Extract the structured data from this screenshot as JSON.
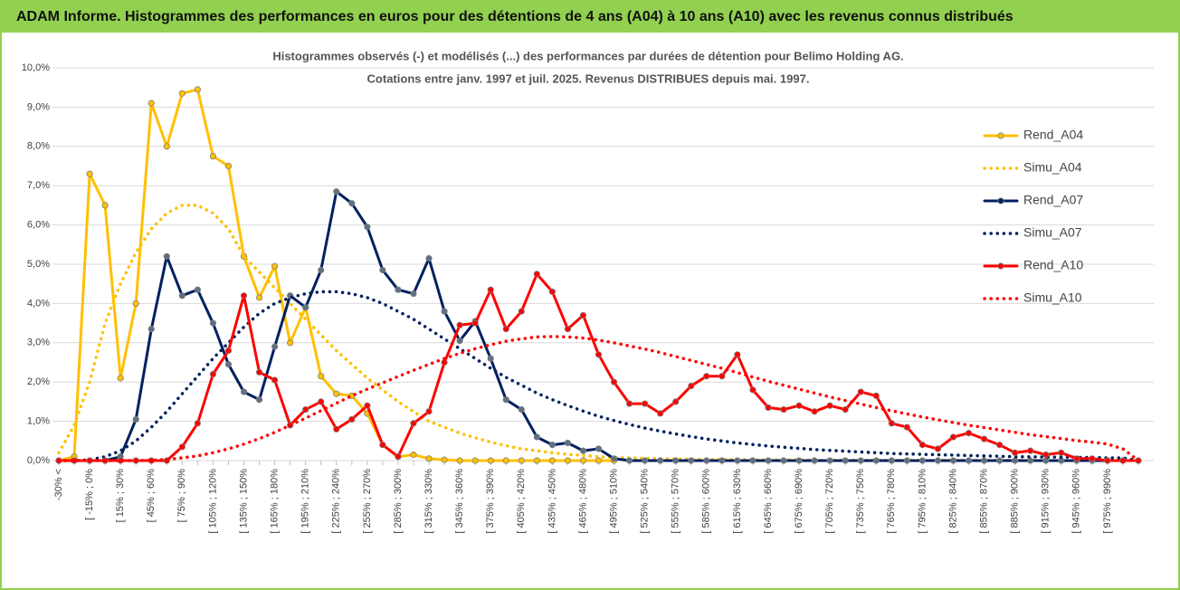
{
  "chart_data": {
    "type": "line",
    "title": "ADAM Informe. Histogrammes des performances en euros pour des détentions de 4 ans (A04) à 10 ans (A10) avec les revenus connus distribués",
    "subtitle": [
      "Histogrammes observés (-) et modélisés (...) des performances par durées de détention pour Belimo Holding AG.",
      "Cotations entre janv. 1997 et juil. 2025. Revenus DISTRIBUES depuis mai. 1997."
    ],
    "categories": [
      "-30% <",
      null,
      "[ -15% ; 0%",
      null,
      "[ 15% ; 30%",
      null,
      "[ 45% ; 60%",
      null,
      "[ 75% ; 90%",
      null,
      "[ 105% ; 120%",
      null,
      "[ 135% ; 150%",
      null,
      "[ 165% ; 180%",
      null,
      "[ 195% ; 210%",
      null,
      "[ 225% ; 240%",
      null,
      "[ 255% ; 270%",
      null,
      "[ 285% ; 300%",
      null,
      "[ 315% ; 330%",
      null,
      "[ 345% ; 360%",
      null,
      "[ 375% ; 390%",
      null,
      "[ 405% ; 420%",
      null,
      "[ 435% ; 450%",
      null,
      "[ 465% ; 480%",
      null,
      "[ 495% ; 510%",
      null,
      "[ 525% ; 540%",
      null,
      "[ 555% ; 570%",
      null,
      "[ 585% ; 600%",
      null,
      "[ 615% ; 630%",
      null,
      "[ 645% ; 660%",
      null,
      "[ 675% ; 690%",
      null,
      "[ 705% ; 720%",
      null,
      "[ 735% ; 750%",
      null,
      "[ 765% ; 780%",
      null,
      "[ 795% ; 810%",
      null,
      "[ 825% ; 840%",
      null,
      "[ 855% ; 870%",
      null,
      "[ 885% ; 900%",
      null,
      "[ 915% ; 930%",
      null,
      "[ 945% ; 960%",
      null,
      "[ 975% ; 990%",
      null,
      null
    ],
    "series": [
      {
        "name": "Rend_A04",
        "color": "#ffc000",
        "line_style": "solid",
        "markers": true,
        "values": [
          0,
          0.1,
          7.3,
          6.5,
          2.1,
          4.0,
          9.1,
          8.0,
          9.35,
          9.45,
          7.75,
          7.5,
          5.2,
          4.15,
          4.95,
          3.0,
          3.9,
          2.15,
          1.7,
          1.65,
          1.2,
          0.4,
          0.1,
          0.15,
          0.05,
          0.02,
          0,
          0,
          0,
          0,
          0,
          0,
          0,
          0,
          0,
          0,
          0,
          null,
          null,
          null,
          null,
          null,
          null,
          null,
          null,
          null,
          null,
          null,
          null,
          null,
          null,
          null,
          null,
          null,
          null,
          null,
          null,
          null,
          null,
          null,
          null,
          null,
          null,
          null,
          null,
          null,
          null,
          null,
          null,
          null,
          null
        ]
      },
      {
        "name": "Simu_A04",
        "color": "#ffc000",
        "line_style": "dotted",
        "markers": false,
        "values": [
          0.2,
          0.9,
          2.0,
          3.5,
          4.5,
          5.3,
          5.9,
          6.3,
          6.5,
          6.5,
          6.3,
          5.9,
          5.2,
          4.8,
          4.4,
          4.0,
          3.6,
          3.2,
          2.8,
          2.45,
          2.1,
          1.8,
          1.5,
          1.25,
          1.0,
          0.85,
          0.7,
          0.58,
          0.47,
          0.38,
          0.3,
          0.25,
          0.2,
          0.16,
          0.13,
          0.1,
          0.08,
          0.07,
          0.06,
          0.05,
          0.04,
          0.04,
          0.03,
          0.03,
          0.03,
          0.02,
          0.02,
          0.02,
          0.02,
          0.01,
          0.01,
          0.01,
          0.01,
          0.01,
          0.01,
          0.01,
          0.01,
          0.01,
          0.01,
          0.01,
          0.01,
          0.01,
          0.01,
          0.01,
          0.01,
          0,
          0,
          0,
          0,
          0,
          0
        ]
      },
      {
        "name": "Rend_A07",
        "color": "#002060",
        "line_style": "solid",
        "markers": true,
        "values": [
          0,
          0,
          0,
          0,
          0.1,
          1.05,
          3.35,
          5.2,
          4.2,
          4.35,
          3.5,
          2.45,
          1.75,
          1.55,
          2.9,
          4.2,
          3.9,
          4.85,
          6.85,
          6.55,
          5.95,
          4.85,
          4.35,
          4.25,
          5.15,
          3.8,
          3.05,
          3.55,
          2.6,
          1.55,
          1.3,
          0.6,
          0.4,
          0.45,
          0.25,
          0.3,
          0.05,
          0,
          0,
          0,
          0,
          0,
          0,
          0,
          0,
          0,
          0,
          0,
          0,
          0,
          0,
          0,
          0,
          0,
          0,
          0,
          0,
          0,
          0,
          0,
          0,
          0,
          0,
          0,
          0,
          0,
          0,
          0,
          0,
          0,
          0
        ]
      },
      {
        "name": "Simu_A07",
        "color": "#002060",
        "line_style": "dotted",
        "markers": false,
        "values": [
          0,
          0,
          0.02,
          0.1,
          0.25,
          0.5,
          0.85,
          1.25,
          1.7,
          2.15,
          2.6,
          3.0,
          3.4,
          3.75,
          4.0,
          4.15,
          4.25,
          4.3,
          4.3,
          4.25,
          4.15,
          4.0,
          3.8,
          3.6,
          3.35,
          3.1,
          2.85,
          2.6,
          2.35,
          2.12,
          1.92,
          1.72,
          1.55,
          1.4,
          1.26,
          1.13,
          1.02,
          0.92,
          0.83,
          0.75,
          0.68,
          0.61,
          0.55,
          0.5,
          0.45,
          0.41,
          0.37,
          0.34,
          0.31,
          0.28,
          0.26,
          0.24,
          0.22,
          0.2,
          0.18,
          0.17,
          0.16,
          0.15,
          0.14,
          0.13,
          0.12,
          0.11,
          0.1,
          0.1,
          0.09,
          0.09,
          0.08,
          0.08,
          0.07,
          0.07,
          0
        ]
      },
      {
        "name": "Rend_A10",
        "color": "#ff0000",
        "line_style": "solid",
        "markers": true,
        "values": [
          0,
          0,
          0,
          0,
          0,
          0,
          0,
          0,
          0.35,
          0.95,
          2.2,
          2.8,
          4.2,
          2.25,
          2.05,
          0.9,
          1.3,
          1.5,
          0.8,
          1.05,
          1.4,
          0.4,
          0.1,
          0.95,
          1.25,
          2.5,
          3.45,
          3.5,
          4.35,
          3.35,
          3.8,
          4.75,
          4.3,
          3.35,
          3.7,
          2.7,
          2.0,
          1.45,
          1.45,
          1.2,
          1.5,
          1.9,
          2.15,
          2.15,
          2.7,
          1.8,
          1.35,
          1.3,
          1.4,
          1.25,
          1.4,
          1.3,
          1.75,
          1.65,
          0.95,
          0.85,
          0.4,
          0.3,
          0.6,
          0.7,
          0.55,
          0.4,
          0.2,
          0.25,
          0.15,
          0.2,
          0.05,
          0.05,
          0,
          0,
          0
        ]
      },
      {
        "name": "Simu_A10",
        "color": "#ff0000",
        "line_style": "dotted",
        "markers": false,
        "values": [
          0,
          0,
          0,
          0,
          0,
          0,
          0.01,
          0.03,
          0.07,
          0.12,
          0.2,
          0.3,
          0.42,
          0.56,
          0.72,
          0.9,
          1.08,
          1.27,
          1.46,
          1.65,
          1.82,
          1.98,
          2.14,
          2.3,
          2.45,
          2.6,
          2.73,
          2.85,
          2.95,
          3.04,
          3.1,
          3.15,
          3.16,
          3.15,
          3.12,
          3.07,
          3.0,
          2.92,
          2.84,
          2.75,
          2.65,
          2.55,
          2.45,
          2.35,
          2.24,
          2.13,
          2.02,
          1.92,
          1.82,
          1.72,
          1.62,
          1.53,
          1.44,
          1.35,
          1.27,
          1.19,
          1.11,
          1.04,
          0.97,
          0.9,
          0.84,
          0.78,
          0.72,
          0.66,
          0.61,
          0.56,
          0.51,
          0.47,
          0.42,
          0.3,
          0
        ]
      }
    ],
    "ylim": [
      0,
      10
    ],
    "yticks": [
      {
        "value": 0,
        "label": "0,0%"
      },
      {
        "value": 1,
        "label": "1,0%"
      },
      {
        "value": 2,
        "label": "2,0%"
      },
      {
        "value": 3,
        "label": "3,0%"
      },
      {
        "value": 4,
        "label": "4,0%"
      },
      {
        "value": 5,
        "label": "5,0%"
      },
      {
        "value": 6,
        "label": "6,0%"
      },
      {
        "value": 7,
        "label": "7,0%"
      },
      {
        "value": 8,
        "label": "8,0%"
      },
      {
        "value": 9,
        "label": "9,0%"
      },
      {
        "value": 10,
        "label": "10,0%"
      }
    ],
    "grid": true,
    "legend": "right"
  }
}
